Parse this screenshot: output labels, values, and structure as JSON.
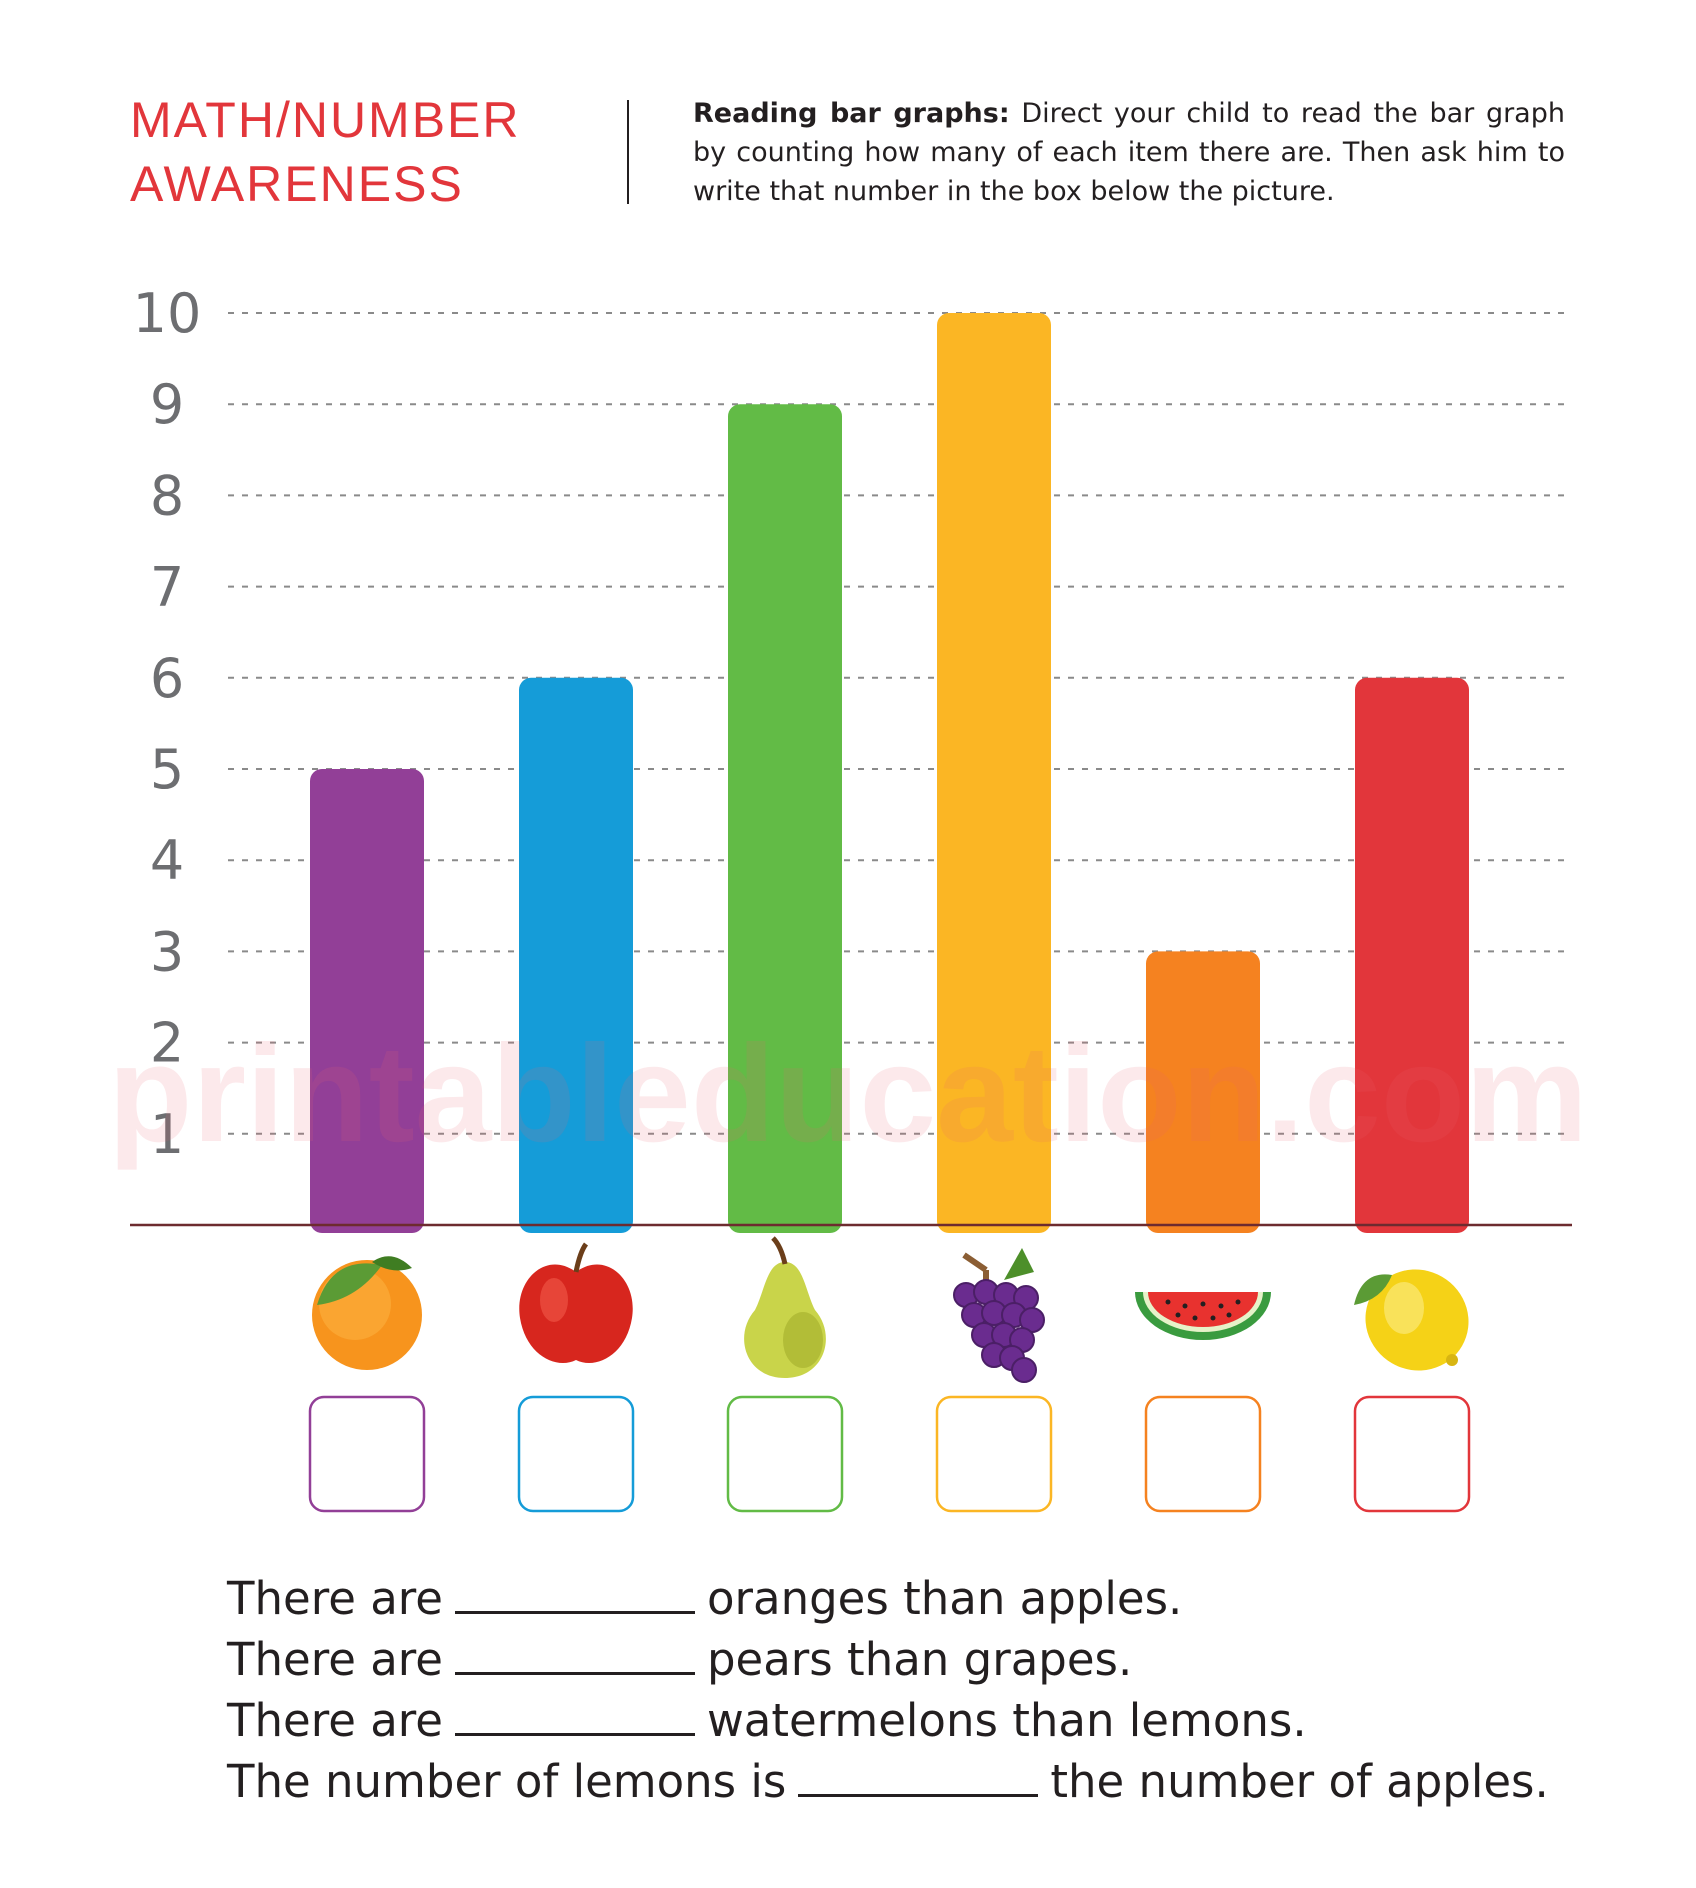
{
  "header": {
    "title_line1": "MATH/NUMBER",
    "title_line2": "AWARENESS",
    "instructions_bold": "Reading bar graphs:",
    "instructions_text": "Direct your child to read the bar graph by counting how many of each item there are.  Then ask him to write that number in the box below the picture."
  },
  "watermark": "printableducation.com",
  "chart_data": {
    "type": "bar",
    "categories": [
      "orange",
      "apple",
      "pear",
      "grapes",
      "watermelon",
      "lemon"
    ],
    "values": [
      5,
      6,
      9,
      10,
      3,
      6
    ],
    "colors": [
      "#923f97",
      "#159cd8",
      "#62bb46",
      "#fbb624",
      "#f58220",
      "#e2363b"
    ],
    "icons": [
      "orange-icon",
      "apple-icon",
      "pear-icon",
      "grapes-icon",
      "watermelon-icon",
      "lemon-icon"
    ],
    "yticks": [
      "1",
      "2",
      "3",
      "4",
      "5",
      "6",
      "7",
      "8",
      "9",
      "10"
    ],
    "ylim": [
      0,
      10
    ],
    "grid": true,
    "title": "",
    "xlabel": "",
    "ylabel": ""
  },
  "sentences": [
    {
      "before": "There are",
      "after": "oranges than apples."
    },
    {
      "before": "There are",
      "after": "pears than grapes."
    },
    {
      "before": "There are",
      "after": "watermelons than lemons."
    },
    {
      "before": "The number of lemons is",
      "after": "the number of apples."
    }
  ]
}
